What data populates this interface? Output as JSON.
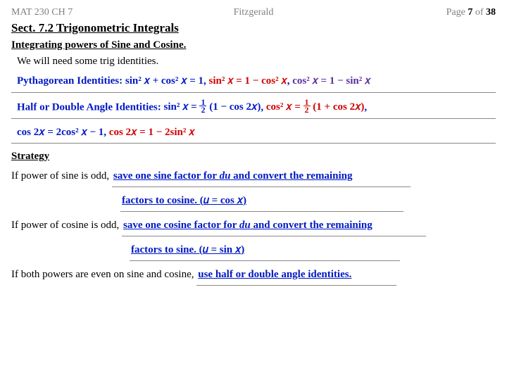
{
  "header": {
    "left": "MAT 230 CH 7",
    "center": "Fitzgerald",
    "right_prefix": "Page ",
    "page_num": "7",
    "of_word": " of ",
    "total_pages": "38"
  },
  "colors": {
    "header_gray": "#808080",
    "blue": "#0018c4",
    "red": "#d00000",
    "purple": "#5a2fa0",
    "rule": "#888888"
  },
  "section_title": "Sect. 7.2 Trigonometric Integrals",
  "sub_title": "Integrating powers of Sine and Cosine.",
  "intro_line": "We will need some trig identities.",
  "pythag": {
    "label": "Pythagorean Identities: ",
    "blue_part": "sin² 𝑥 + cos² 𝑥 = 1",
    "sep1": ", ",
    "red_part": "sin² 𝑥 = 1 − cos² 𝑥",
    "sep2": ", ",
    "purple_part": "cos² 𝑥 = 1 − sin² 𝑥"
  },
  "halfangle": {
    "label": "Half or Double Angle Identities: ",
    "blue1_pre": "sin² 𝑥 = ",
    "blue1_num": "1",
    "blue1_den": "2",
    "blue1_post": " (1 − cos 2𝑥)",
    "sep1": ", ",
    "red_pre": "cos² 𝑥 = ",
    "red_num": "1",
    "red_den": "2",
    "red_post": " (1 + cos 2𝑥)",
    "sep2": ",",
    "line2_blue": "cos 2𝑥 = 2cos² 𝑥 − 1",
    "line2_sep": ",  ",
    "line2_red": "cos 2𝑥 = 1 − 2sin² 𝑥"
  },
  "strategy": {
    "title": "Strategy",
    "sine_odd_prefix": "If power of sine is odd, ",
    "sine_odd_l1": " save one sine factor for du and convert the remaining ",
    "sine_odd_l2a": " factors to cosine. (",
    "sine_odd_l2b": "𝑢 = cos 𝑥",
    "sine_odd_l2c": ") ",
    "cos_odd_prefix": "If power of cosine is odd, ",
    "cos_odd_l1": " save one cosine factor for du and convert the remaining ",
    "cos_odd_l2a": " factors to sine. (",
    "cos_odd_l2b": "𝑢 = sin 𝑥",
    "cos_odd_l2c": ") ",
    "both_even_prefix": "If both powers are even on sine and cosine, ",
    "both_even_fill": "use half or double angle identities."
  }
}
